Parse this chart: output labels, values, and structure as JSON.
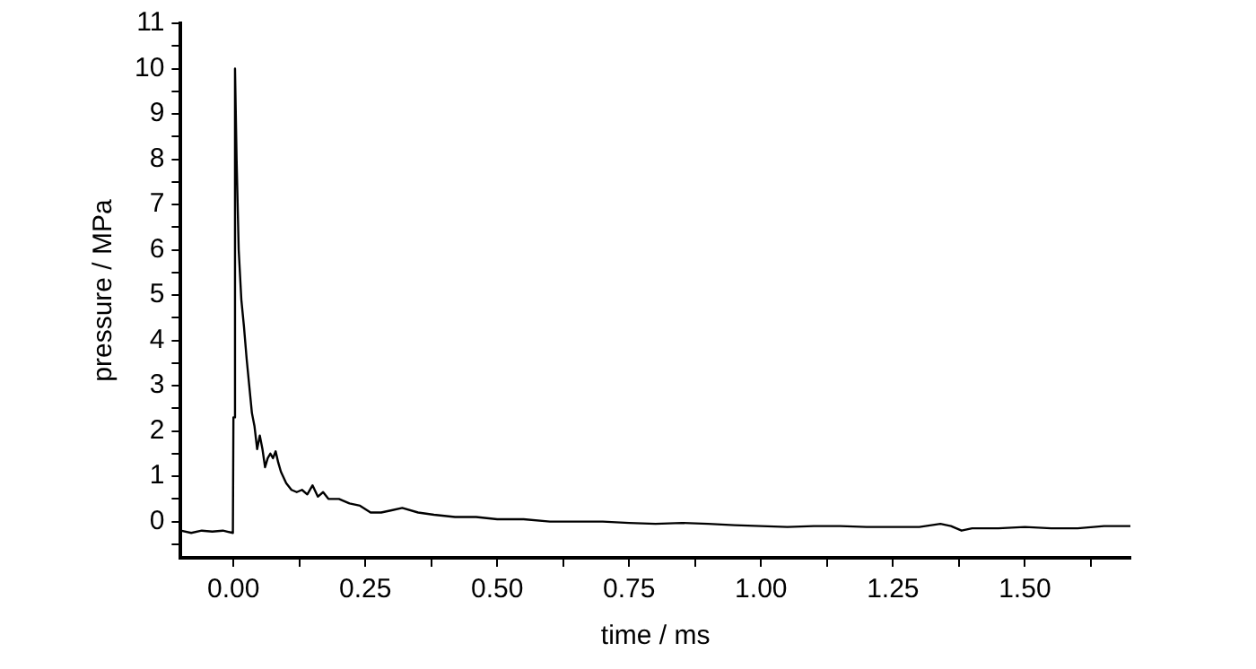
{
  "chart_data": {
    "type": "line",
    "xlabel": "time / ms",
    "ylabel": "pressure / MPa",
    "xlim": [
      -0.1,
      1.7
    ],
    "ylim": [
      -0.8,
      11
    ],
    "xticks": [
      {
        "value": 0,
        "label": "0.00"
      },
      {
        "value": 0.125,
        "label": null
      },
      {
        "value": 0.25,
        "label": "0.25"
      },
      {
        "value": 0.375,
        "label": null
      },
      {
        "value": 0.5,
        "label": "0.50"
      },
      {
        "value": 0.625,
        "label": null
      },
      {
        "value": 0.75,
        "label": "0.75"
      },
      {
        "value": 0.875,
        "label": null
      },
      {
        "value": 1,
        "label": "1.00"
      },
      {
        "value": 1.125,
        "label": null
      },
      {
        "value": 1.25,
        "label": "1.25"
      },
      {
        "value": 1.375,
        "label": null
      },
      {
        "value": 1.5,
        "label": "1.50"
      },
      {
        "value": 1.625,
        "label": null
      }
    ],
    "yticks": [
      {
        "value": -0.5,
        "label": null
      },
      0,
      {
        "value": 0.5,
        "label": null
      },
      1,
      {
        "value": 1.5,
        "label": null
      },
      2,
      {
        "value": 2.5,
        "label": null
      },
      3,
      {
        "value": 3.5,
        "label": null
      },
      4,
      {
        "value": 4.5,
        "label": null
      },
      5,
      {
        "value": 5.5,
        "label": null
      },
      6,
      {
        "value": 6.5,
        "label": null
      },
      7,
      {
        "value": 7.5,
        "label": null
      },
      8,
      {
        "value": 8.5,
        "label": null
      },
      9,
      {
        "value": 9.5,
        "label": null
      },
      10,
      {
        "value": 10.5,
        "label": null
      },
      11
    ],
    "grid": false,
    "legend": false,
    "marker": "none",
    "line_style": "solid",
    "series": [
      {
        "color": "#000000",
        "x": [
          -0.1,
          -0.08,
          -0.06,
          -0.04,
          -0.02,
          -0.001,
          0,
          0.003,
          0.006,
          0.01,
          0.015,
          0.02,
          0.025,
          0.03,
          0.035,
          0.04,
          0.045,
          0.05,
          0.055,
          0.06,
          0.065,
          0.07,
          0.075,
          0.08,
          0.085,
          0.09,
          0.1,
          0.11,
          0.12,
          0.13,
          0.14,
          0.15,
          0.16,
          0.17,
          0.18,
          0.2,
          0.22,
          0.24,
          0.26,
          0.28,
          0.3,
          0.32,
          0.35,
          0.38,
          0.42,
          0.46,
          0.5,
          0.55,
          0.6,
          0.65,
          0.7,
          0.75,
          0.8,
          0.85,
          0.9,
          0.95,
          1.0,
          1.05,
          1.1,
          1.15,
          1.2,
          1.25,
          1.3,
          1.34,
          1.36,
          1.38,
          1.4,
          1.45,
          1.5,
          1.55,
          1.6,
          1.65,
          1.7
        ],
        "values": [
          -0.2,
          -0.25,
          -0.2,
          -0.22,
          -0.2,
          -0.25,
          2.3,
          10,
          8,
          6,
          4.9,
          4.3,
          3.6,
          3.0,
          2.4,
          2.1,
          1.6,
          1.9,
          1.6,
          1.2,
          1.4,
          1.5,
          1.4,
          1.55,
          1.3,
          1.1,
          0.85,
          0.7,
          0.65,
          0.7,
          0.6,
          0.8,
          0.55,
          0.65,
          0.5,
          0.5,
          0.4,
          0.35,
          0.2,
          0.2,
          0.25,
          0.3,
          0.2,
          0.15,
          0.1,
          0.1,
          0.05,
          0.05,
          0.0,
          0.0,
          0.0,
          -0.03,
          -0.05,
          -0.03,
          -0.05,
          -0.08,
          -0.1,
          -0.12,
          -0.1,
          -0.1,
          -0.12,
          -0.12,
          -0.12,
          -0.05,
          -0.1,
          -0.2,
          -0.15,
          -0.15,
          -0.12,
          -0.15,
          -0.15,
          -0.1,
          -0.1
        ]
      }
    ]
  }
}
